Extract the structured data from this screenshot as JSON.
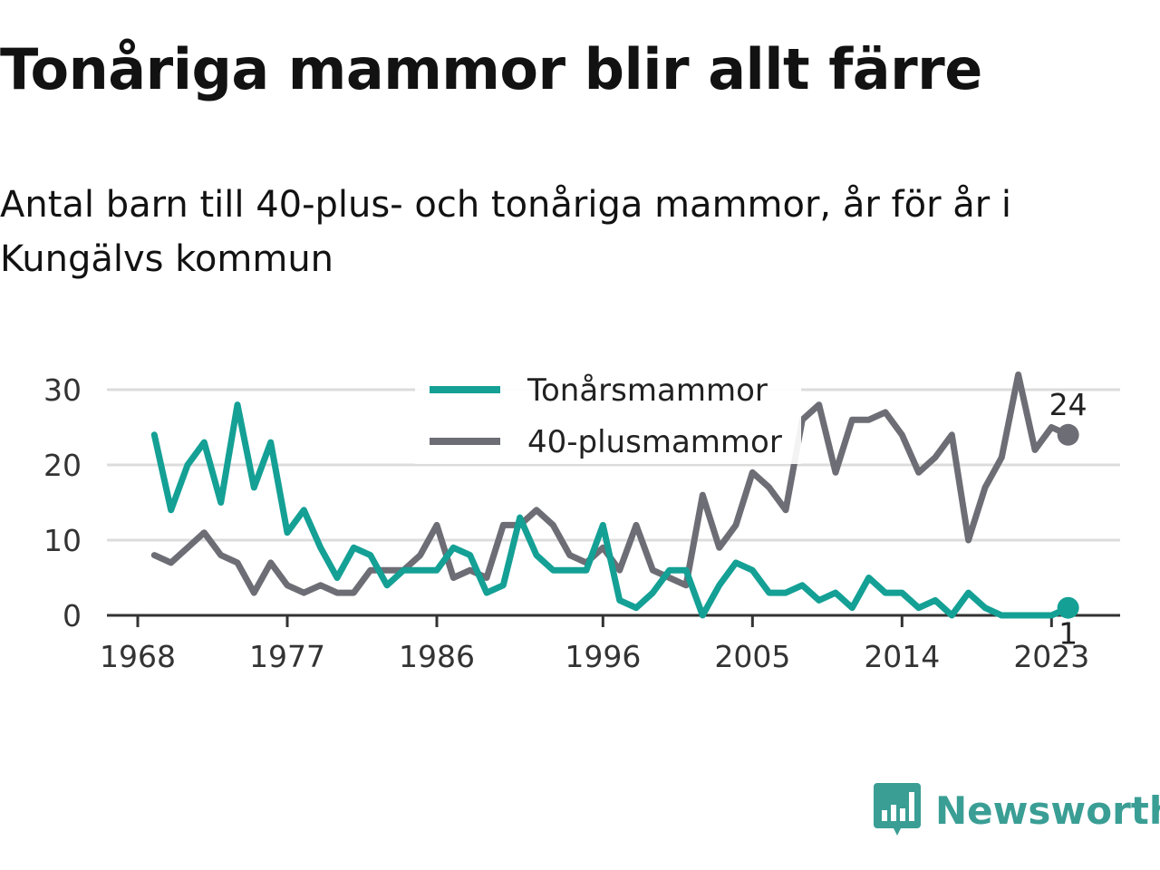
{
  "header": {
    "title": "Tonåriga mammor blir allt färre",
    "subtitle": "Antal barn till 40-plus- och tonåriga mammor, år för år i Kungälvs kommun"
  },
  "branding": {
    "name": "Newsworthy",
    "icon": "bar-chart-speech-bubble-icon",
    "color": "#3a9e95"
  },
  "chart_data": {
    "type": "line",
    "x": [
      1969,
      1970,
      1971,
      1972,
      1973,
      1974,
      1975,
      1976,
      1977,
      1978,
      1979,
      1980,
      1981,
      1982,
      1983,
      1984,
      1985,
      1986,
      1987,
      1988,
      1989,
      1990,
      1991,
      1992,
      1993,
      1994,
      1995,
      1996,
      1997,
      1998,
      1999,
      2000,
      2001,
      2002,
      2003,
      2004,
      2005,
      2006,
      2007,
      2008,
      2009,
      2010,
      2011,
      2012,
      2013,
      2014,
      2015,
      2016,
      2017,
      2018,
      2019,
      2020,
      2021,
      2022,
      2023,
      2024
    ],
    "series": [
      {
        "name": "Tonårsmammor",
        "color": "#14a095",
        "values": [
          24,
          14,
          20,
          23,
          15,
          28,
          17,
          23,
          11,
          14,
          9,
          5,
          9,
          8,
          4,
          6,
          6,
          6,
          9,
          8,
          3,
          4,
          13,
          8,
          6,
          6,
          6,
          12,
          2,
          1,
          3,
          6,
          6,
          0,
          4,
          7,
          6,
          3,
          3,
          4,
          2,
          3,
          1,
          5,
          3,
          3,
          1,
          2,
          0,
          3,
          1,
          0,
          0,
          0,
          0,
          1
        ]
      },
      {
        "name": "40-plusmammor",
        "color": "#6d6d75",
        "values": [
          8,
          7,
          9,
          11,
          8,
          7,
          3,
          7,
          4,
          3,
          4,
          3,
          3,
          6,
          6,
          6,
          8,
          12,
          5,
          6,
          5,
          12,
          12,
          14,
          12,
          8,
          7,
          9,
          6,
          12,
          6,
          5,
          4,
          16,
          9,
          12,
          19,
          17,
          14,
          26,
          28,
          19,
          26,
          26,
          27,
          24,
          19,
          21,
          24,
          10,
          17,
          21,
          32,
          22,
          25,
          24
        ]
      }
    ],
    "x_ticks": [
      "1968",
      "1977",
      "1986",
      "1996",
      "2005",
      "2014",
      "2023"
    ],
    "y_ticks": [
      "0",
      "10",
      "20",
      "30"
    ],
    "ylim": [
      0,
      30
    ],
    "xlabel": "",
    "ylabel": "",
    "end_labels": {
      "Tonårsmammor": "1",
      "40-plusmammor": "24"
    },
    "grid": true,
    "legend_position": "top-center"
  }
}
